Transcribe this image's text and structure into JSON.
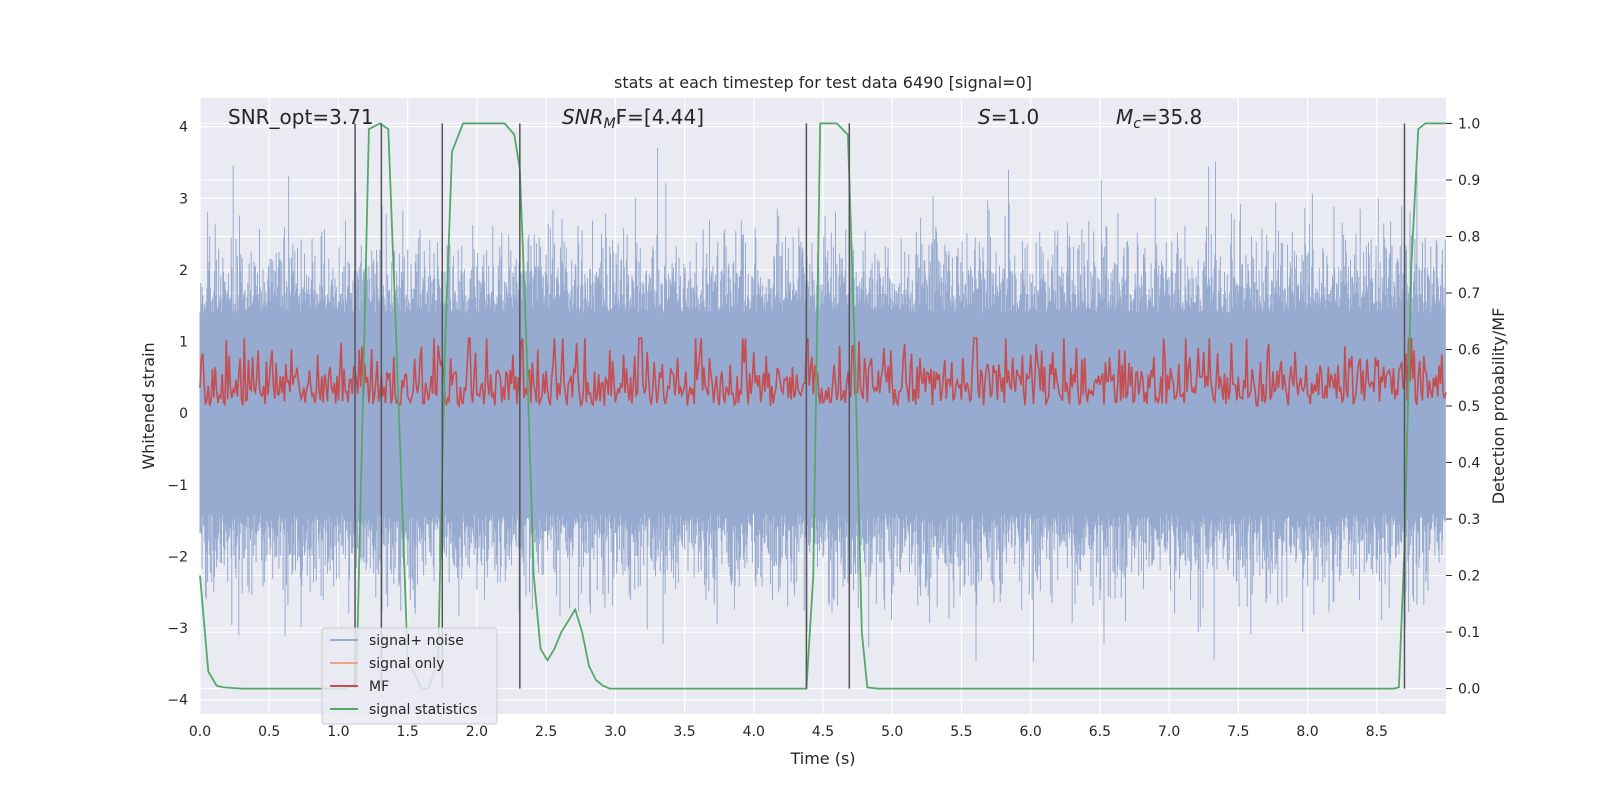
{
  "chart_data": {
    "type": "line",
    "title": "stats at each timestep for test data 6490 [signal=0]",
    "xlabel": "Time (s)",
    "ylabel": "Whitened strain",
    "ylabel_right": "Detection probability/MF",
    "xlim": [
      0,
      9.0
    ],
    "ylim": [
      -4.2,
      4.4
    ],
    "ylim_right": [
      -0.045,
      1.045
    ],
    "x_ticks": [
      0,
      0.5,
      1.0,
      1.5,
      2.0,
      2.5,
      3.0,
      3.5,
      4.0,
      4.5,
      5.0,
      5.5,
      6.0,
      6.5,
      7.0,
      7.5,
      8.0,
      8.5
    ],
    "x_tick_labels": [
      "0.0",
      "0.5",
      "1.0",
      "1.5",
      "2.0",
      "2.5",
      "3.0",
      "3.5",
      "4.0",
      "4.5",
      "5.0",
      "5.5",
      "6.0",
      "6.5",
      "7.0",
      "7.5",
      "8.0",
      "8.5"
    ],
    "y_ticks": [
      4,
      3,
      2,
      1,
      0,
      -1,
      -2,
      -3,
      -4
    ],
    "y_tick_labels": [
      "4",
      "3",
      "2",
      "1",
      "0",
      "−1",
      "−2",
      "−3",
      "−4"
    ],
    "y_ticks_right": [
      1.0,
      0.9,
      0.8,
      0.7,
      0.6,
      0.5,
      0.4,
      0.3,
      0.2,
      0.1,
      0.0
    ],
    "y_tick_labels_right": [
      "1.0",
      "0.9",
      "0.8",
      "0.7",
      "0.6",
      "0.5",
      "0.4",
      "0.3",
      "0.2",
      "0.1",
      "0.0"
    ],
    "grid": true,
    "legend_position": "lower-left",
    "annotations": {
      "snr_opt": "SNR_opt=3.71",
      "snr_mf_label": "SNR",
      "snr_mf_sub": "M",
      "snr_mf_rest": "F=[4.44]",
      "s_label": "S",
      "s_value": "=1.0",
      "mc_label": "M",
      "mc_sub": "c",
      "mc_value": "=35.8"
    },
    "series": [
      {
        "name": "signal+ noise",
        "color": "#97abd0",
        "description_envelope": {
          "typical_upper": 2.0,
          "typical_lower": -2.0,
          "max": 3.7,
          "min": -3.7
        }
      },
      {
        "name": "signal only",
        "color": "#e8a58a",
        "values": []
      },
      {
        "name": "MF",
        "color": "#c44e52",
        "axis": "right",
        "typical_range": [
          0.5,
          0.6
        ],
        "peaks": [
          {
            "x": 3.18,
            "y": 0.62
          },
          {
            "x": 5.6,
            "y": 0.62
          }
        ]
      },
      {
        "name": "signal statistics",
        "color": "#55a868",
        "axis": "right",
        "x": [
          0.0,
          0.06,
          0.12,
          0.17,
          0.3,
          0.5,
          0.8,
          1.0,
          1.05,
          1.13,
          1.18,
          1.22,
          1.3,
          1.36,
          1.42,
          1.5,
          1.6,
          1.65,
          1.72,
          1.77,
          1.82,
          1.9,
          2.0,
          2.1,
          2.2,
          2.27,
          2.31,
          2.36,
          2.41,
          2.46,
          2.51,
          2.56,
          2.61,
          2.66,
          2.71,
          2.76,
          2.81,
          2.86,
          2.91,
          2.96,
          3.1,
          3.5,
          4.0,
          4.3,
          4.38,
          4.43,
          4.48,
          4.6,
          4.68,
          4.73,
          4.78,
          4.82,
          4.9,
          5.5,
          6.5,
          7.5,
          8.3,
          8.62,
          8.66,
          8.7,
          8.75,
          8.8,
          8.85,
          8.92,
          9.0
        ],
        "values": [
          0.2,
          0.03,
          0.005,
          0.002,
          0.0,
          0.0,
          0.0,
          0.0,
          0.0,
          0.01,
          0.55,
          0.99,
          1.0,
          0.99,
          0.6,
          0.05,
          0.0,
          0.0,
          0.05,
          0.6,
          0.95,
          1.0,
          1.0,
          1.0,
          1.0,
          0.98,
          0.92,
          0.6,
          0.2,
          0.07,
          0.05,
          0.07,
          0.1,
          0.12,
          0.14,
          0.1,
          0.04,
          0.015,
          0.005,
          0.0,
          0.0,
          0.0,
          0.0,
          0.0,
          0.0,
          0.2,
          1.0,
          1.0,
          0.98,
          0.6,
          0.1,
          0.002,
          0.0,
          0.0,
          0.0,
          0.0,
          0.0,
          0.0,
          0.002,
          0.25,
          0.75,
          0.99,
          1.0,
          1.0,
          1.0
        ]
      }
    ],
    "vertical_lines_x": [
      1.12,
      1.31,
      1.75,
      2.31,
      4.38,
      4.69,
      8.7
    ]
  }
}
